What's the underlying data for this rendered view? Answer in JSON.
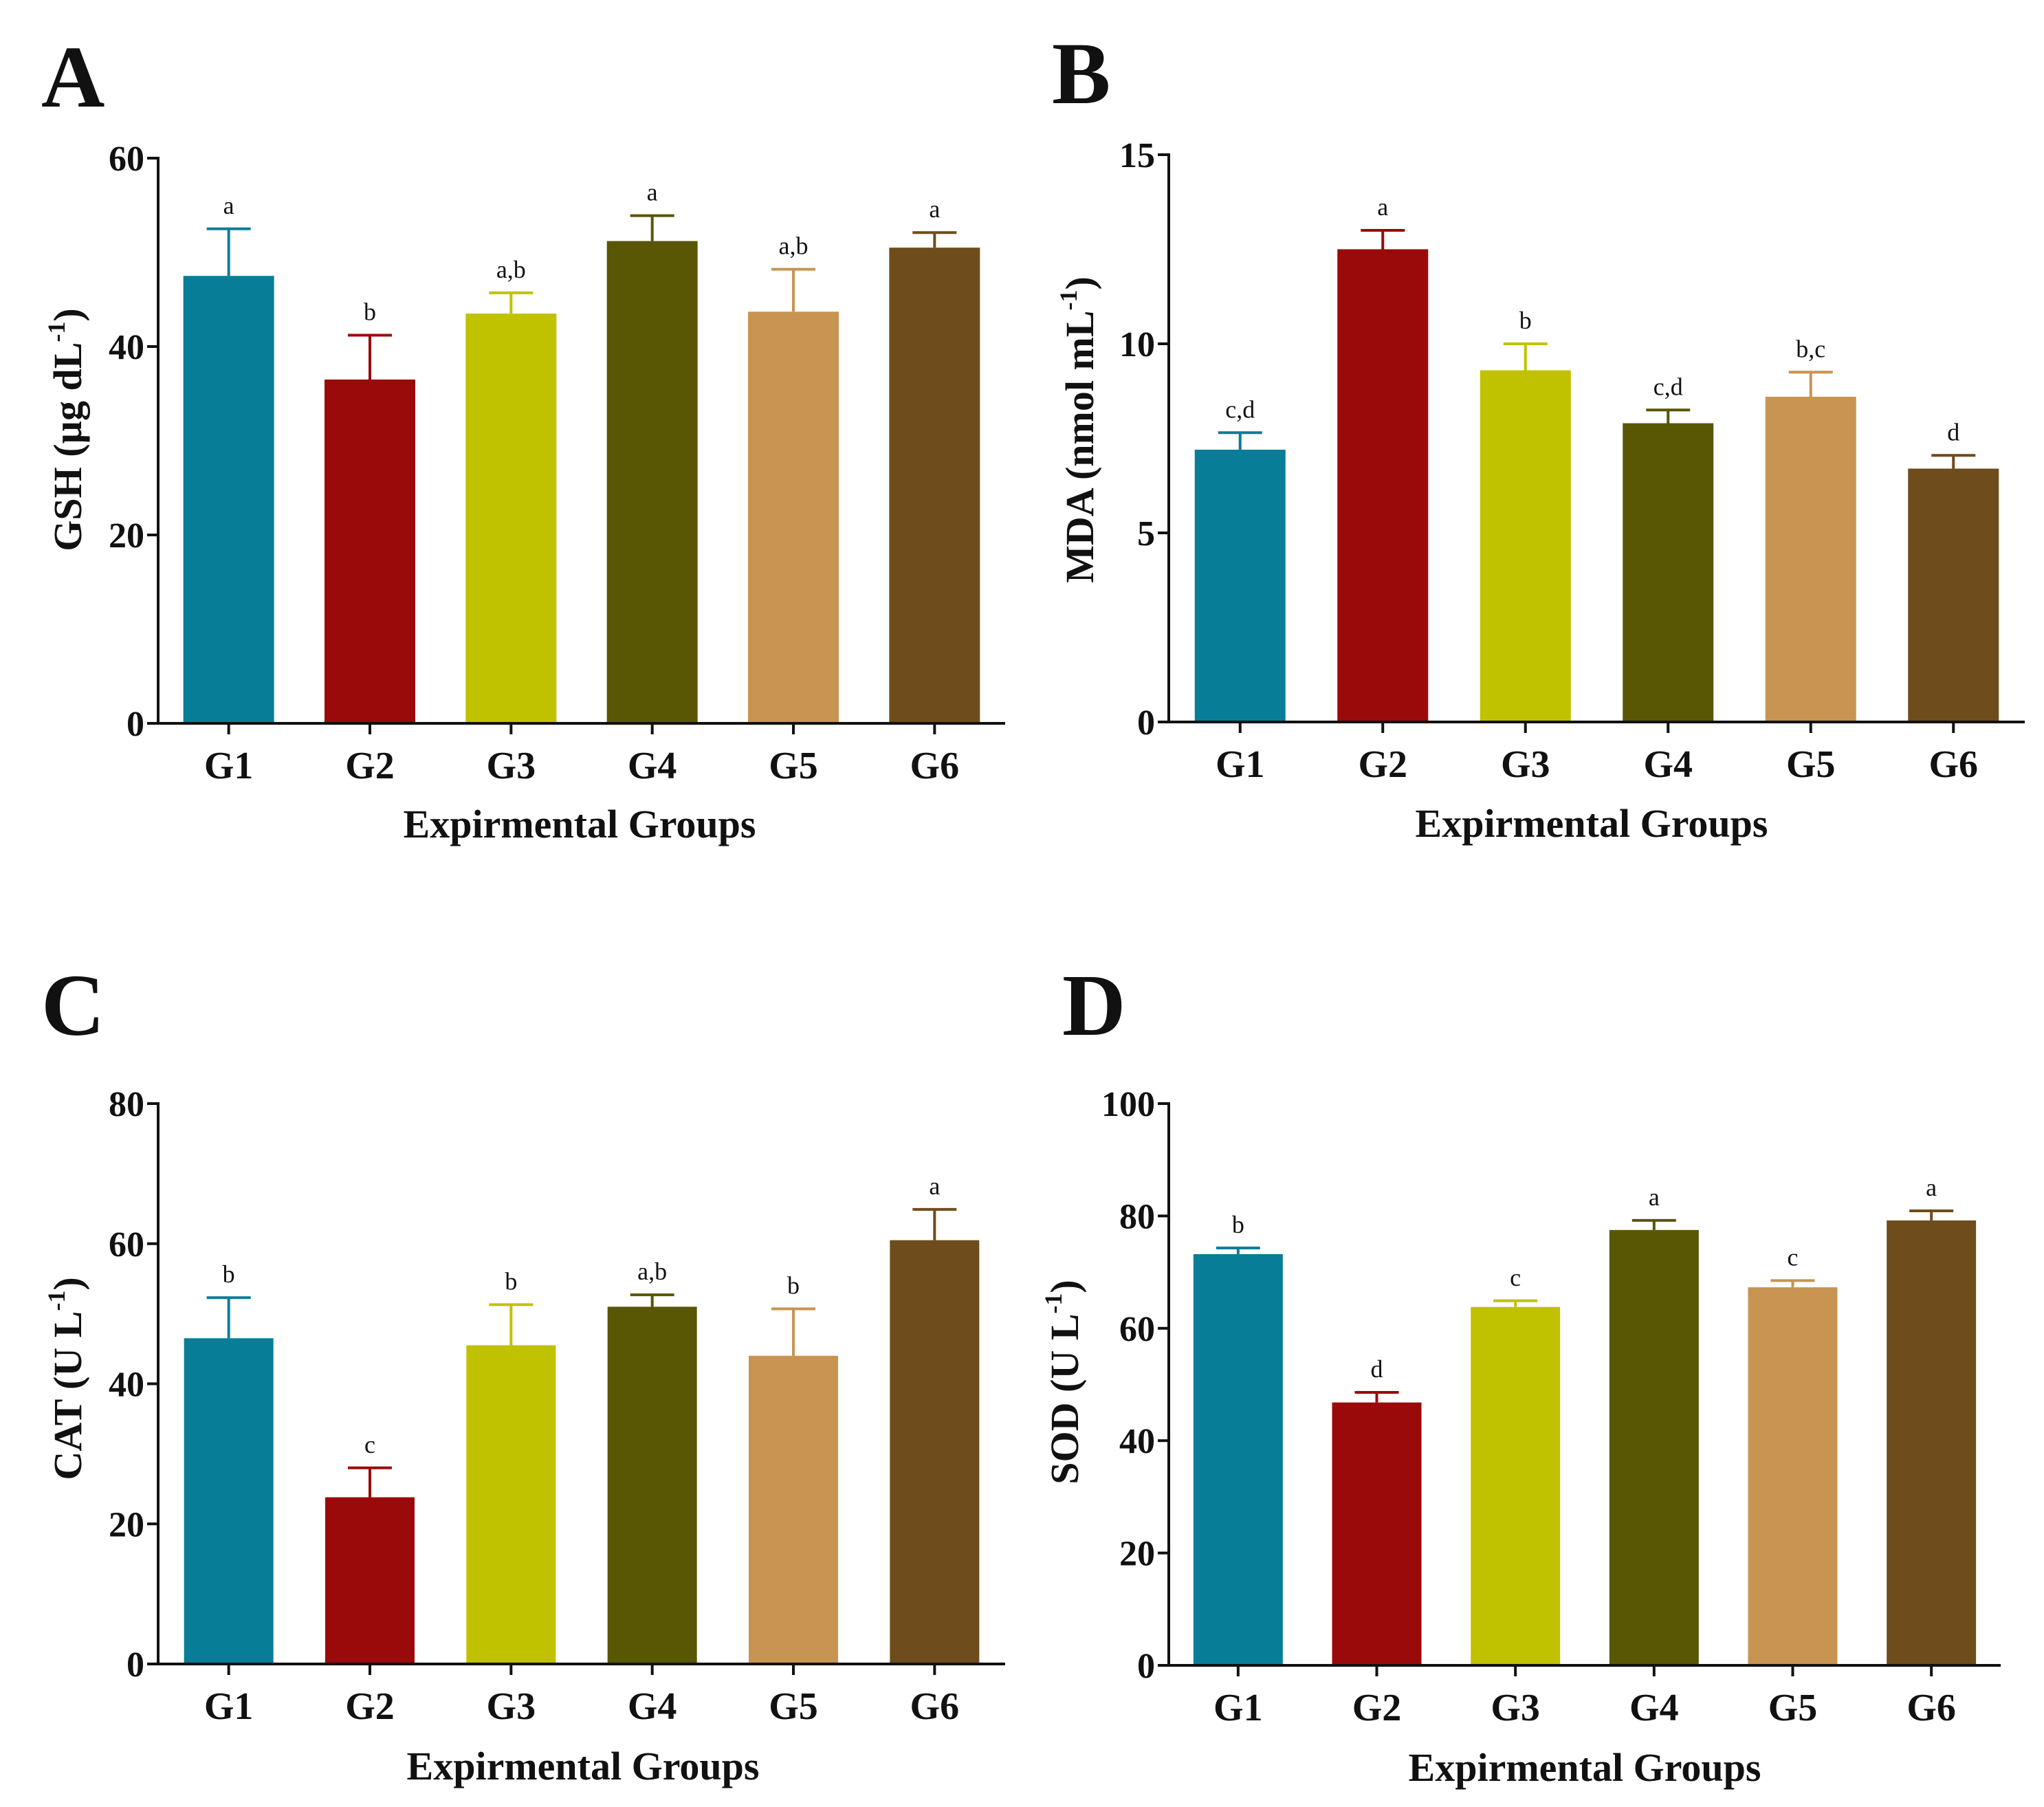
{
  "group_colors": [
    "#087d98",
    "#9b0a0a",
    "#c0c200",
    "#595703",
    "#c79452",
    "#6f4c1b"
  ],
  "chart_data": [
    {
      "panel": "A",
      "type": "bar",
      "categories": [
        "G1",
        "G2",
        "G3",
        "G4",
        "G5",
        "G6"
      ],
      "values": [
        47.5,
        36.5,
        43.5,
        51.2,
        43.7,
        50.5
      ],
      "errors": [
        5.0,
        4.7,
        2.2,
        2.7,
        4.5,
        1.6
      ],
      "significance": [
        "a",
        "b",
        "a,b",
        "a",
        "a,b",
        "a"
      ],
      "ylabel": "GSH (µg dL",
      "ylabel_sup": "-1",
      "ylabel_close": ")",
      "xlabel": "Expirmental Groups",
      "ylim": [
        0,
        60
      ],
      "yticks": [
        "0",
        "20",
        "40",
        "60"
      ]
    },
    {
      "panel": "B",
      "type": "bar",
      "categories": [
        "G1",
        "G2",
        "G3",
        "G4",
        "G5",
        "G6"
      ],
      "values": [
        7.2,
        12.5,
        9.3,
        7.9,
        8.6,
        6.7
      ],
      "errors": [
        0.45,
        0.5,
        0.7,
        0.35,
        0.65,
        0.35
      ],
      "significance": [
        "c,d",
        "a",
        "b",
        "c,d",
        "b,c",
        "d"
      ],
      "ylabel": "MDA (nmol mL",
      "ylabel_sup": "-1",
      "ylabel_close": ")",
      "xlabel": "Expirmental Groups",
      "ylim": [
        0,
        15
      ],
      "yticks": [
        "0",
        "5",
        "10",
        "15"
      ]
    },
    {
      "panel": "C",
      "type": "bar",
      "categories": [
        "G1",
        "G2",
        "G3",
        "G4",
        "G5",
        "G6"
      ],
      "values": [
        46.5,
        23.8,
        45.5,
        51.0,
        44.0,
        60.5
      ],
      "errors": [
        5.8,
        4.2,
        5.8,
        1.7,
        6.7,
        4.4
      ],
      "significance": [
        "b",
        "c",
        "b",
        "a,b",
        "b",
        "a"
      ],
      "ylabel": "CAT (U L",
      "ylabel_sup": "-1",
      "ylabel_close": ")",
      "xlabel": "Expirmental Groups",
      "ylim": [
        0,
        80
      ],
      "yticks": [
        "0",
        "20",
        "40",
        "60",
        "80"
      ]
    },
    {
      "panel": "D",
      "type": "bar",
      "categories": [
        "G1",
        "G2",
        "G3",
        "G4",
        "G5",
        "G6"
      ],
      "values": [
        73.2,
        46.8,
        63.8,
        77.5,
        67.3,
        79.2
      ],
      "errors": [
        1.1,
        1.8,
        1.1,
        1.7,
        1.2,
        1.7
      ],
      "significance": [
        "b",
        "d",
        "c",
        "a",
        "c",
        "a"
      ],
      "ylabel": "SOD (U L",
      "ylabel_sup": "-1",
      "ylabel_close": ")",
      "xlabel": "Expirmental Groups",
      "ylim": [
        0,
        100
      ],
      "yticks": [
        "0",
        "20",
        "40",
        "60",
        "80",
        "100"
      ]
    }
  ]
}
